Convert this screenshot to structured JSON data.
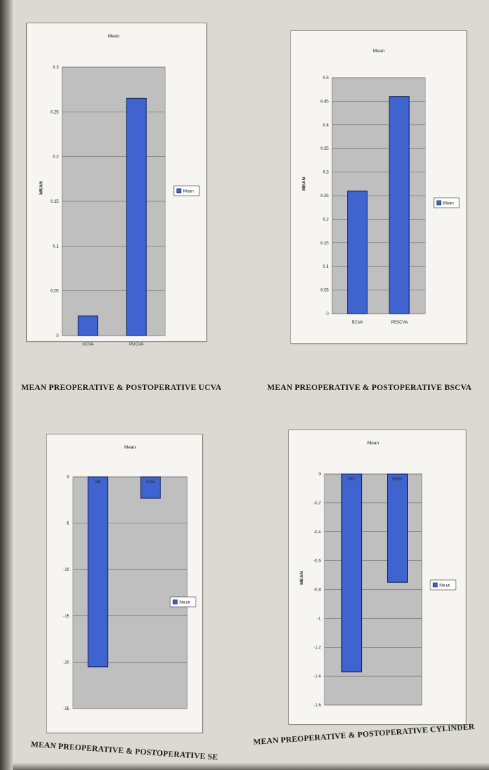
{
  "chart_data": [
    {
      "type": "bar",
      "title": "Mean",
      "ylabel": "MEAN",
      "categories": [
        "UCVA",
        "PUCVA"
      ],
      "series": [
        {
          "name": "Mean",
          "values": [
            0.022,
            0.265
          ]
        }
      ],
      "ylim": [
        0,
        0.3
      ],
      "yticks": [
        "0",
        "0.05",
        "0.1",
        "0.15",
        "0.2",
        "0.25",
        "0.3"
      ],
      "grid": true,
      "legend_position": "right",
      "bar_labels": [],
      "caption": "MEAN PREOPERATIVE & POSTOPERATIVE UCVA"
    },
    {
      "type": "bar",
      "title": "Mean",
      "ylabel": "MEAN",
      "categories": [
        "BCVA",
        "PBSCVA"
      ],
      "series": [
        {
          "name": "Mean",
          "values": [
            0.26,
            0.46
          ]
        }
      ],
      "ylim": [
        0,
        0.5
      ],
      "yticks": [
        "0",
        "0.05",
        "0.1",
        "0.15",
        "0.2",
        "0.25",
        "0.3",
        "0.35",
        "0.4",
        "0.45",
        "0.5"
      ],
      "grid": true,
      "legend_position": "right",
      "bar_labels": [],
      "caption": "MEAN PREOPERATIVE & POSTOPERATIVE BSCVA"
    },
    {
      "type": "bar",
      "title": "Mean",
      "ylabel": "",
      "categories": [
        "SE",
        "RSE"
      ],
      "series": [
        {
          "name": "Mean",
          "values": [
            -20.5,
            -2.3
          ]
        }
      ],
      "ylim": [
        -25,
        0
      ],
      "yticks": [
        "0",
        "-5",
        "-10",
        "-15",
        "-20",
        "-25"
      ],
      "grid": true,
      "legend_position": "right",
      "bar_labels": [
        "SE",
        "RSE"
      ],
      "caption": "MEAN PREOPERATIVE & POSTOPERATIVE SE"
    },
    {
      "type": "bar",
      "title": "Mean",
      "ylabel": "MEAN",
      "categories": [
        "REr",
        "RREr"
      ],
      "series": [
        {
          "name": "Mean",
          "values": [
            -1.37,
            -0.75
          ]
        }
      ],
      "ylim": [
        -1.6,
        0
      ],
      "yticks": [
        "0",
        "-0.2",
        "-0.4",
        "-0.6",
        "-0.8",
        "-1",
        "-1.2",
        "-1.4",
        "-1.6"
      ],
      "grid": true,
      "legend_position": "right",
      "bar_labels": [
        "REr",
        "RREr"
      ],
      "caption": "MEAN PREOPERATIVE & POSTOPERATIVE CYLINDER"
    }
  ],
  "colors": {
    "bar": "#3f63cf",
    "bar_border": "#0d1b4f",
    "plot_bg": "#bfbfbf",
    "frame_bg": "#f6f5f1"
  }
}
